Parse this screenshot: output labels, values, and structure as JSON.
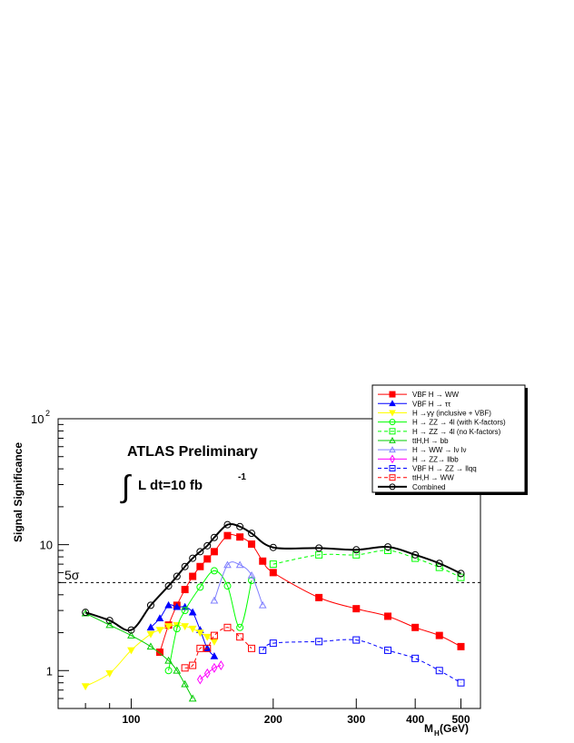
{
  "chart_data": {
    "type": "line",
    "title": "",
    "annotations": {
      "experiment": "ATLAS Preliminary",
      "luminosity_prefix": "L dt=10 fb",
      "luminosity_exponent": "-1",
      "integral_symbol": "∫",
      "threshold_label": "5σ"
    },
    "xlabel": "M",
    "xlabel_sub": "H",
    "xlabel_unit": "(GeV)",
    "ylabel": "Signal Significance",
    "x_scale": "log",
    "y_scale": "log",
    "xlim": [
      70,
      550
    ],
    "ylim": [
      0.5,
      100
    ],
    "x_ticks": [
      {
        "value": 100,
        "label": "100"
      },
      {
        "value": 200,
        "label": "200"
      },
      {
        "value": 300,
        "label": "300"
      },
      {
        "value": 400,
        "label": "400"
      },
      {
        "value": 500,
        "label": "500"
      }
    ],
    "y_ticks": [
      {
        "value": 1,
        "label": "1"
      },
      {
        "value": 10,
        "label": "10"
      }
    ],
    "y_top_label": {
      "base": "10",
      "exponent": "2"
    },
    "threshold": 5,
    "legend_position": "top-right",
    "series": [
      {
        "name": "VBF H → WW",
        "color": "#ff0000",
        "dash": "",
        "marker": "square-filled",
        "points": [
          [
            115,
            1.4
          ],
          [
            120,
            2.3
          ],
          [
            125,
            3.3
          ],
          [
            130,
            4.4
          ],
          [
            135,
            5.6
          ],
          [
            140,
            6.7
          ],
          [
            145,
            7.7
          ],
          [
            150,
            8.8
          ],
          [
            160,
            11.8
          ],
          [
            170,
            11.5
          ],
          [
            180,
            10.1
          ],
          [
            190,
            7.4
          ],
          [
            200,
            6.0
          ],
          [
            250,
            3.8
          ],
          [
            300,
            3.1
          ],
          [
            350,
            2.7
          ],
          [
            400,
            2.2
          ],
          [
            450,
            1.9
          ],
          [
            500,
            1.55
          ]
        ]
      },
      {
        "name": "VBF H → ττ",
        "color": "#0000ff",
        "dash": "",
        "marker": "triangle-up-filled",
        "points": [
          [
            110,
            2.2
          ],
          [
            115,
            2.6
          ],
          [
            120,
            3.3
          ],
          [
            125,
            3.2
          ],
          [
            130,
            3.2
          ],
          [
            135,
            2.9
          ],
          [
            140,
            2.1
          ],
          [
            145,
            1.5
          ],
          [
            150,
            1.3
          ]
        ]
      },
      {
        "name": "H →γγ (inclusive + VBF)",
        "color": "#ffff00",
        "dash": "",
        "marker": "triangle-down-filled",
        "points": [
          [
            80,
            0.75
          ],
          [
            90,
            0.95
          ],
          [
            100,
            1.45
          ],
          [
            110,
            1.95
          ],
          [
            115,
            2.1
          ],
          [
            120,
            2.25
          ],
          [
            125,
            2.3
          ],
          [
            130,
            2.25
          ],
          [
            135,
            2.15
          ],
          [
            140,
            2.0
          ],
          [
            145,
            1.85
          ],
          [
            150,
            1.7
          ]
        ]
      },
      {
        "name": "H → ZZ → 4l (with K-factors)",
        "color": "#00ff00",
        "dash": "",
        "marker": "circle-open",
        "points": [
          [
            120,
            1.0
          ],
          [
            125,
            2.15
          ],
          [
            130,
            3.0
          ],
          [
            140,
            4.6
          ],
          [
            150,
            6.2
          ],
          [
            160,
            4.7
          ],
          [
            170,
            2.2
          ],
          [
            180,
            5.2
          ]
        ]
      },
      {
        "name": "H → ZZ → 4l (no K-factors)",
        "color": "#00ff00",
        "dash": "4,3",
        "marker": "square-open",
        "points": [
          [
            200,
            7.0
          ],
          [
            250,
            8.3
          ],
          [
            300,
            8.3
          ],
          [
            350,
            9.0
          ],
          [
            400,
            7.8
          ],
          [
            450,
            6.6
          ],
          [
            500,
            5.5
          ]
        ]
      },
      {
        "name": "ttH,H → bb",
        "color": "#00cc00",
        "dash": "",
        "marker": "triangle-up-open",
        "points": [
          [
            80,
            2.85
          ],
          [
            90,
            2.3
          ],
          [
            100,
            1.9
          ],
          [
            110,
            1.55
          ],
          [
            120,
            1.2
          ],
          [
            125,
            1.0
          ],
          [
            130,
            0.78
          ],
          [
            135,
            0.6
          ]
        ]
      },
      {
        "name": "H → WW → lν lν",
        "color": "#7f7fff",
        "dash": "",
        "marker": "triangle-up-open",
        "points": [
          [
            150,
            3.6
          ],
          [
            160,
            6.9
          ],
          [
            170,
            6.9
          ],
          [
            180,
            5.7
          ],
          [
            190,
            3.3
          ]
        ]
      },
      {
        "name": "H → ZZ→ llbb",
        "color": "#ff00ff",
        "dash": "",
        "marker": "diamond-open",
        "points": [
          [
            140,
            0.85
          ],
          [
            145,
            0.95
          ],
          [
            150,
            1.05
          ],
          [
            155,
            1.1
          ]
        ]
      },
      {
        "name": "VBF H → ZZ → llqq",
        "color": "#0000ff",
        "dash": "4,3",
        "marker": "square-open",
        "points": [
          [
            190,
            1.45
          ],
          [
            200,
            1.65
          ],
          [
            250,
            1.7
          ],
          [
            300,
            1.75
          ],
          [
            350,
            1.45
          ],
          [
            400,
            1.25
          ],
          [
            450,
            1.0
          ],
          [
            500,
            0.8
          ]
        ]
      },
      {
        "name": "ttH,H → WW",
        "color": "#ff0000",
        "dash": "4,3",
        "marker": "square-open",
        "points": [
          [
            130,
            1.05
          ],
          [
            135,
            1.1
          ],
          [
            140,
            1.5
          ],
          [
            145,
            1.5
          ],
          [
            150,
            1.9
          ],
          [
            160,
            2.2
          ],
          [
            170,
            1.85
          ],
          [
            180,
            1.5
          ]
        ]
      },
      {
        "name": "Combined",
        "color": "#000000",
        "dash": "",
        "marker": "circle-open",
        "width": 2,
        "points": [
          [
            80,
            2.9
          ],
          [
            90,
            2.5
          ],
          [
            100,
            2.1
          ],
          [
            110,
            3.3
          ],
          [
            120,
            4.7
          ],
          [
            125,
            5.6
          ],
          [
            130,
            6.7
          ],
          [
            135,
            7.8
          ],
          [
            140,
            8.8
          ],
          [
            145,
            9.8
          ],
          [
            150,
            11.4
          ],
          [
            160,
            14.4
          ],
          [
            170,
            13.9
          ],
          [
            180,
            12.3
          ],
          [
            200,
            9.5
          ],
          [
            250,
            9.4
          ],
          [
            300,
            9.1
          ],
          [
            350,
            9.6
          ],
          [
            400,
            8.3
          ],
          [
            450,
            7.1
          ],
          [
            500,
            5.9
          ]
        ]
      }
    ]
  }
}
